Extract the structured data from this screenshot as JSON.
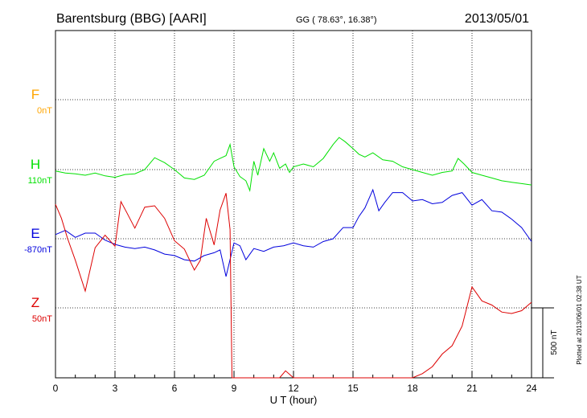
{
  "header": {
    "title": "Barentsburg (BBG)  [AARI]",
    "coords": "GG ( 78.63°,  16.38°)",
    "date": "2013/05/01",
    "credit": "Plotted at 2013/06/01 02:38 UT"
  },
  "chart_data": {
    "type": "line",
    "xlabel": "U T (hour)",
    "xlim": [
      0,
      24
    ],
    "x_ticks": [
      "0",
      "3",
      "6",
      "9",
      "12",
      "15",
      "18",
      "21",
      "24"
    ],
    "scale_bar": {
      "label": "500 nT",
      "value": 500
    },
    "grid": true,
    "colors": {
      "F": "#ffa500",
      "H": "#00e000",
      "E": "#0000dd",
      "Z": "#dd0000"
    },
    "series": [
      {
        "name": "F",
        "baseline_label": "0nT",
        "x": [],
        "values": []
      },
      {
        "name": "H",
        "baseline_label": "110nT",
        "x": [
          0,
          0.5,
          1,
          1.5,
          2,
          2.5,
          3,
          3.5,
          4,
          4.5,
          5,
          5.5,
          6,
          6.5,
          7,
          7.5,
          8,
          8.3,
          8.6,
          8.8,
          9,
          9.3,
          9.6,
          9.8,
          10,
          10.2,
          10.5,
          10.8,
          11,
          11.3,
          11.6,
          11.8,
          12,
          12.5,
          13,
          13.5,
          14,
          14.3,
          14.6,
          15,
          15.3,
          15.6,
          16,
          16.5,
          17,
          17.5,
          18,
          18.5,
          19,
          19.5,
          20,
          20.3,
          20.6,
          21,
          21.5,
          22,
          22.5,
          23,
          23.5,
          24
        ],
        "values": [
          -10,
          -25,
          -30,
          -40,
          -25,
          -45,
          -55,
          -35,
          -30,
          0,
          85,
          50,
          0,
          -60,
          -70,
          -40,
          60,
          80,
          100,
          180,
          20,
          -50,
          -80,
          -150,
          60,
          -40,
          150,
          60,
          120,
          10,
          40,
          -20,
          20,
          40,
          20,
          80,
          180,
          230,
          200,
          150,
          110,
          90,
          120,
          70,
          60,
          20,
          0,
          -20,
          -40,
          -20,
          -10,
          80,
          40,
          -20,
          -40,
          -60,
          -80,
          -90,
          -100,
          -110
        ]
      },
      {
        "name": "E",
        "baseline_label": "-870nT",
        "x": [
          0,
          0.5,
          1,
          1.5,
          2,
          2.5,
          3,
          3.5,
          4,
          4.5,
          5,
          5.5,
          6,
          6.5,
          7,
          7.5,
          8,
          8.3,
          8.6,
          9,
          9.3,
          9.6,
          10,
          10.5,
          11,
          11.5,
          12,
          12.5,
          13,
          13.5,
          14,
          14.5,
          15,
          15.3,
          15.6,
          16,
          16.3,
          16.6,
          17,
          17.5,
          18,
          18.5,
          19,
          19.5,
          20,
          20.5,
          21,
          21.5,
          22,
          22.5,
          23,
          23.5,
          24
        ],
        "values": [
          30,
          60,
          10,
          40,
          40,
          -10,
          -40,
          -60,
          -70,
          -60,
          -80,
          -110,
          -120,
          -150,
          -160,
          -120,
          -100,
          -80,
          -270,
          -30,
          -50,
          -150,
          -70,
          -90,
          -60,
          -50,
          -30,
          -50,
          -60,
          -20,
          0,
          80,
          80,
          160,
          220,
          350,
          200,
          260,
          330,
          330,
          270,
          280,
          250,
          260,
          310,
          330,
          240,
          280,
          200,
          190,
          140,
          80,
          -20
        ]
      },
      {
        "name": "Z",
        "baseline_label": "50nT",
        "x": [
          0,
          0.3,
          0.6,
          1,
          1.5,
          2,
          2.5,
          3,
          3.3,
          3.6,
          4,
          4.5,
          5,
          5.5,
          6,
          6.5,
          7,
          7.3,
          7.6,
          8,
          8.3,
          8.6,
          8.8,
          8.9,
          9,
          9.3,
          9.6,
          10,
          10.3,
          10.6,
          11,
          11.3,
          11.6,
          12,
          12.5,
          13,
          13.5,
          14,
          14.5,
          15,
          15.3,
          15.6,
          16,
          16.5,
          17,
          17.5,
          18,
          18.5,
          19,
          19.5,
          20,
          20.5,
          21,
          21.5,
          22,
          22.5,
          23,
          23.5,
          24
        ],
        "values": [
          740,
          640,
          500,
          340,
          120,
          430,
          520,
          440,
          760,
          680,
          570,
          720,
          730,
          640,
          480,
          420,
          270,
          340,
          640,
          450,
          700,
          820,
          560,
          -500,
          -980,
          -880,
          -620,
          -690,
          -580,
          -510,
          -590,
          -620,
          -450,
          -880,
          -860,
          -880,
          -850,
          -820,
          -920,
          -1250,
          -1100,
          -1380,
          -1050,
          -1000,
          -800,
          -650,
          -550,
          -470,
          -420,
          -330,
          -270,
          -130,
          150,
          50,
          20,
          -30,
          -40,
          -20,
          40
        ]
      }
    ]
  }
}
